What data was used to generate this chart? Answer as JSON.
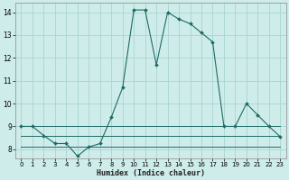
{
  "xlabel": "Humidex (Indice chaleur)",
  "bg_color": "#ceecea",
  "grid_color": "#a8d5d1",
  "line_color": "#1e6b65",
  "xlim": [
    -0.5,
    23.5
  ],
  "ylim": [
    7.6,
    14.4
  ],
  "xticks": [
    0,
    1,
    2,
    3,
    4,
    5,
    6,
    7,
    8,
    9,
    10,
    11,
    12,
    13,
    14,
    15,
    16,
    17,
    18,
    19,
    20,
    21,
    22,
    23
  ],
  "yticks": [
    8,
    9,
    10,
    11,
    12,
    13,
    14
  ],
  "series1_x": [
    0,
    1,
    2,
    3,
    4,
    5,
    6,
    7,
    8,
    9,
    10,
    11,
    12,
    13,
    14,
    15,
    16,
    17,
    18,
    19,
    20,
    21,
    22,
    23
  ],
  "series1_y": [
    9.0,
    9.0,
    8.6,
    8.25,
    8.25,
    7.7,
    8.1,
    8.25,
    9.4,
    10.7,
    14.1,
    14.1,
    11.7,
    14.0,
    13.7,
    13.5,
    13.1,
    12.7,
    9.0,
    9.0,
    10.0,
    9.5,
    9.0,
    8.55
  ],
  "series1_markers": [
    0,
    1,
    2,
    3,
    4,
    5,
    6,
    7,
    8,
    9,
    10,
    11,
    12,
    13,
    14,
    15,
    16,
    17,
    18,
    19,
    20,
    21,
    22,
    23
  ],
  "series2_x": [
    0,
    1,
    2,
    3,
    4,
    5,
    6,
    7,
    8,
    9,
    10,
    11,
    12,
    13,
    14,
    15,
    16,
    17,
    18,
    19,
    20,
    21,
    22,
    23
  ],
  "series2_y": [
    9.0,
    9.0,
    9.0,
    9.0,
    9.0,
    9.0,
    9.0,
    9.0,
    9.0,
    9.0,
    9.0,
    9.0,
    9.0,
    9.0,
    9.0,
    9.0,
    9.0,
    9.0,
    9.0,
    9.0,
    9.0,
    9.0,
    9.0,
    9.0
  ],
  "series3_x": [
    0,
    1,
    2,
    3,
    4,
    5,
    6,
    7,
    8,
    9,
    10,
    11,
    12,
    13,
    14,
    15,
    16,
    17,
    18,
    19,
    20,
    21,
    22,
    23
  ],
  "series3_y": [
    8.6,
    8.6,
    8.6,
    8.6,
    8.6,
    8.6,
    8.6,
    8.6,
    8.6,
    8.6,
    8.6,
    8.6,
    8.6,
    8.6,
    8.6,
    8.6,
    8.6,
    8.6,
    8.6,
    8.6,
    8.6,
    8.6,
    8.6,
    8.6
  ],
  "series4_x": [
    0,
    1,
    2,
    3,
    4,
    5,
    6,
    7,
    8,
    9,
    10,
    11,
    12,
    13,
    14,
    15,
    16,
    17,
    18,
    19,
    20,
    21,
    22,
    23
  ],
  "series4_y": [
    8.1,
    8.1,
    8.1,
    8.1,
    8.1,
    8.1,
    8.1,
    8.1,
    8.1,
    8.1,
    8.1,
    8.1,
    8.1,
    8.1,
    8.1,
    8.1,
    8.1,
    8.1,
    8.1,
    8.1,
    8.1,
    8.1,
    8.1,
    8.1
  ]
}
